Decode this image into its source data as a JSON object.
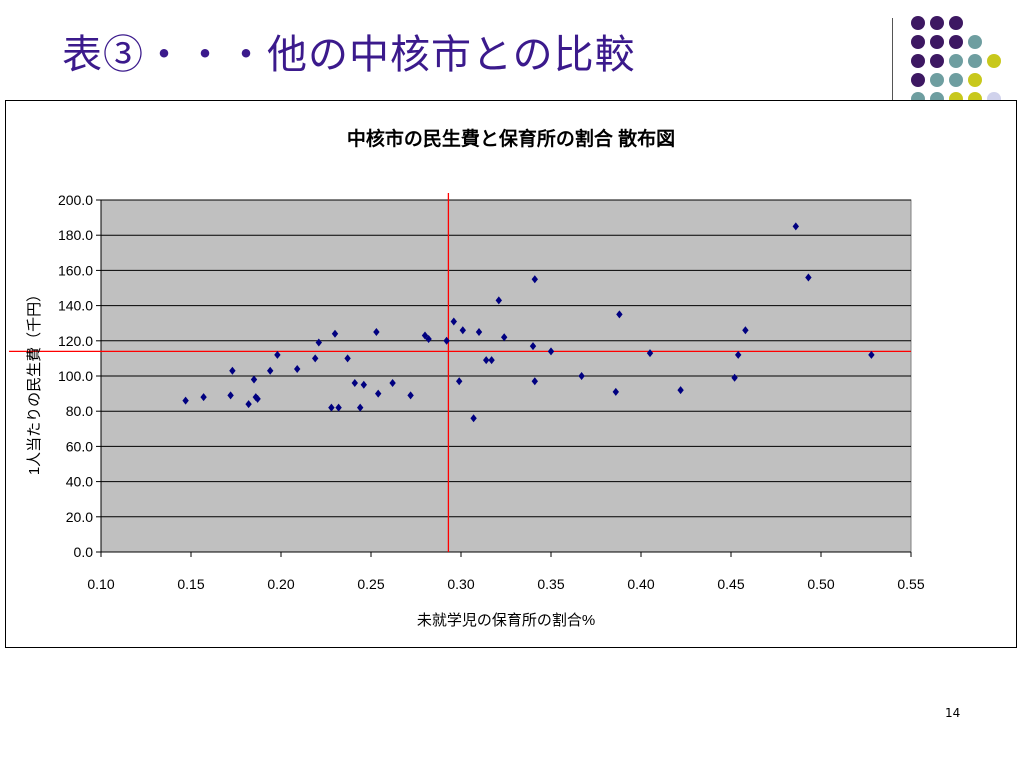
{
  "slide": {
    "title": "表③・・・他の中核市との比較",
    "page_number": "14"
  },
  "decoration": {
    "dot_colors": {
      "purple": "#3d1862",
      "teal": "#6e9ea0",
      "yellow": "#c8c81c",
      "lavender": "#d0d2ec"
    }
  },
  "chart_data": {
    "type": "scatter",
    "title": "中核市の民生費と保育所の割合 散布図",
    "xlabel": "未就学児の保育所の割合%",
    "ylabel": "1人当たりの民生費（千円）",
    "xlim": [
      0.1,
      0.55
    ],
    "ylim": [
      0,
      200
    ],
    "x_ticks": [
      "0.10",
      "0.15",
      "0.20",
      "0.25",
      "0.30",
      "0.35",
      "0.40",
      "0.45",
      "0.50",
      "0.55"
    ],
    "y_ticks": [
      "0.0",
      "20.0",
      "40.0",
      "60.0",
      "80.0",
      "100.0",
      "120.0",
      "140.0",
      "160.0",
      "180.0",
      "200.0"
    ],
    "grid": "horizontal",
    "plot_background": "#c0c0c0",
    "marker_color": "#000080",
    "reference_line_color": "#ff0000",
    "reference_lines": {
      "x": 0.293,
      "y": 114
    },
    "points": [
      [
        0.147,
        86
      ],
      [
        0.157,
        88
      ],
      [
        0.172,
        89
      ],
      [
        0.173,
        103
      ],
      [
        0.182,
        84
      ],
      [
        0.185,
        98
      ],
      [
        0.186,
        88
      ],
      [
        0.187,
        87
      ],
      [
        0.194,
        103
      ],
      [
        0.198,
        112
      ],
      [
        0.209,
        104
      ],
      [
        0.219,
        110
      ],
      [
        0.221,
        119
      ],
      [
        0.228,
        82
      ],
      [
        0.23,
        124
      ],
      [
        0.232,
        82
      ],
      [
        0.237,
        110
      ],
      [
        0.241,
        96
      ],
      [
        0.244,
        82
      ],
      [
        0.246,
        95
      ],
      [
        0.253,
        125
      ],
      [
        0.254,
        90
      ],
      [
        0.262,
        96
      ],
      [
        0.272,
        89
      ],
      [
        0.28,
        123
      ],
      [
        0.282,
        121
      ],
      [
        0.292,
        120
      ],
      [
        0.296,
        131
      ],
      [
        0.299,
        97
      ],
      [
        0.301,
        126
      ],
      [
        0.307,
        76
      ],
      [
        0.31,
        125
      ],
      [
        0.314,
        109
      ],
      [
        0.317,
        109
      ],
      [
        0.321,
        143
      ],
      [
        0.324,
        122
      ],
      [
        0.34,
        117
      ],
      [
        0.341,
        155
      ],
      [
        0.341,
        97
      ],
      [
        0.35,
        114
      ],
      [
        0.367,
        100
      ],
      [
        0.386,
        91
      ],
      [
        0.388,
        135
      ],
      [
        0.405,
        113
      ],
      [
        0.422,
        92
      ],
      [
        0.452,
        99
      ],
      [
        0.454,
        112
      ],
      [
        0.458,
        126
      ],
      [
        0.486,
        185
      ],
      [
        0.493,
        156
      ],
      [
        0.528,
        112
      ]
    ]
  }
}
